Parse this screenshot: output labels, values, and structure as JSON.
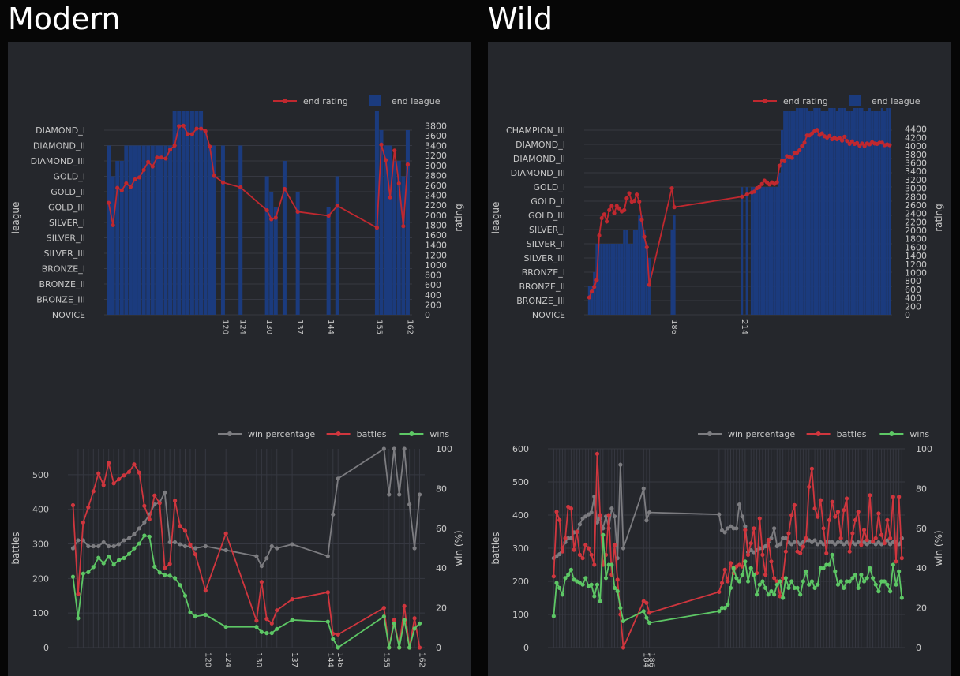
{
  "sections": [
    {
      "title": "Modern",
      "rating_chart": {
        "type": "bar+line",
        "legend": [
          "end rating",
          "end league"
        ],
        "ylabel_left": "league",
        "ylabel_right": "rating",
        "league_ticks": [
          "NOVICE",
          "BRONZE_III",
          "BRONZE_II",
          "BRONZE_I",
          "SILVER_III",
          "SILVER_II",
          "SILVER_I",
          "GOLD_III",
          "GOLD_II",
          "GOLD_I",
          "DIAMOND_III",
          "DIAMOND_II",
          "DIAMOND_I"
        ],
        "rating_ticks": [
          0,
          200,
          400,
          600,
          800,
          1000,
          1200,
          1400,
          1600,
          1800,
          2000,
          2200,
          2400,
          2600,
          2800,
          3000,
          3200,
          3400,
          3600,
          3800
        ],
        "rating_range": [
          0,
          3900
        ],
        "x_range": [
          93,
          163
        ],
        "x_ticks": [
          "120",
          "124",
          "130",
          "137",
          "144",
          "155",
          "162"
        ],
        "x": [
          94,
          95,
          96,
          97,
          98,
          99,
          100,
          101,
          102,
          103,
          104,
          105,
          106,
          107,
          108,
          109,
          110,
          111,
          112,
          113,
          114,
          115,
          116,
          117,
          118,
          120,
          124,
          130,
          131,
          132,
          134,
          137,
          144,
          146,
          155,
          156,
          157,
          158,
          159,
          160,
          161,
          162
        ],
        "league_index": [
          11,
          9,
          10,
          10,
          11,
          11,
          11,
          11,
          11,
          11,
          11,
          11,
          11,
          11,
          11,
          13,
          13,
          13,
          13,
          13,
          13,
          13,
          12,
          11,
          11,
          11,
          11,
          9,
          8,
          7,
          10,
          8,
          7,
          9,
          13,
          12,
          11,
          11,
          10,
          10,
          9,
          12
        ],
        "rating": [
          2250,
          1800,
          2550,
          2500,
          2640,
          2570,
          2720,
          2760,
          2910,
          3070,
          2980,
          3160,
          3160,
          3140,
          3320,
          3400,
          3790,
          3800,
          3630,
          3630,
          3740,
          3740,
          3690,
          3380,
          2790,
          2660,
          2560,
          2100,
          1920,
          1950,
          2530,
          2070,
          1990,
          2190,
          1750,
          3420,
          3110,
          2360,
          3300,
          2640,
          1780,
          3020
        ]
      },
      "battles_chart": {
        "type": "line",
        "legend": [
          "win percentage",
          "battles",
          "wins"
        ],
        "ylabel_left": "battles",
        "ylabel_right": "win (%)",
        "left_ticks": [
          0,
          100,
          200,
          300,
          400,
          500
        ],
        "left_range": [
          0,
          575
        ],
        "right_ticks": [
          0,
          20,
          40,
          60,
          80,
          100
        ],
        "right_range": [
          0,
          100
        ],
        "x_range": [
          93,
          163
        ],
        "x_ticks": [
          "120",
          "124",
          "130",
          "137",
          "144",
          "146",
          "155",
          "162"
        ],
        "x": [
          94,
          95,
          96,
          97,
          98,
          99,
          100,
          101,
          102,
          103,
          104,
          105,
          106,
          107,
          108,
          109,
          110,
          111,
          112,
          113,
          114,
          115,
          116,
          117,
          118,
          120,
          124,
          130,
          131,
          132,
          133,
          134,
          137,
          144,
          145,
          146,
          155,
          156,
          157,
          158,
          159,
          160,
          161,
          162
        ],
        "win_pct": [
          50,
          54,
          54,
          51,
          51,
          51,
          53,
          51,
          51,
          52,
          54,
          55,
          57,
          60,
          63,
          67,
          72,
          73,
          78,
          53,
          53,
          52,
          51,
          51,
          50,
          51,
          49,
          46,
          41,
          45,
          51,
          50,
          52,
          46,
          67,
          85,
          100,
          77,
          100,
          77,
          100,
          72,
          50,
          77
        ],
        "battles": [
          412,
          155,
          362,
          406,
          452,
          504,
          470,
          534,
          475,
          487,
          498,
          508,
          530,
          506,
          410,
          371,
          440,
          418,
          230,
          242,
          425,
          352,
          338,
          298,
          270,
          165,
          330,
          78,
          190,
          83,
          70,
          108,
          140,
          160,
          40,
          38,
          115,
          0,
          80,
          0,
          120,
          0,
          85,
          0
        ],
        "wins": [
          205,
          85,
          214,
          218,
          233,
          260,
          244,
          263,
          240,
          253,
          259,
          271,
          287,
          301,
          324,
          321,
          234,
          217,
          210,
          208,
          201,
          181,
          150,
          102,
          90,
          95,
          60,
          60,
          45,
          42,
          42,
          54,
          80,
          75,
          25,
          0,
          90,
          0,
          70,
          0,
          80,
          0,
          55,
          70
        ]
      }
    },
    {
      "title": "Wild",
      "rating_chart": {
        "type": "bar+line",
        "legend": [
          "end rating",
          "end league"
        ],
        "ylabel_left": "league",
        "ylabel_right": "rating",
        "league_ticks": [
          "NOVICE",
          "BRONZE_III",
          "BRONZE_II",
          "BRONZE_I",
          "SILVER_III",
          "SILVER_II",
          "SILVER_I",
          "GOLD_III",
          "GOLD_II",
          "GOLD_I",
          "DIAMOND_III",
          "DIAMOND_II",
          "DIAMOND_I",
          "CHAMPION_III"
        ],
        "rating_ticks": [
          0,
          200,
          400,
          600,
          800,
          1000,
          1200,
          1400,
          1600,
          1800,
          2000,
          2200,
          2400,
          2600,
          2800,
          3000,
          3200,
          3400,
          3600,
          3800,
          4000,
          4200,
          4400
        ],
        "rating_range": [
          0,
          4600
        ],
        "x_range": [
          151,
          274
        ],
        "x_ticks": [
          "186",
          "214"
        ],
        "x": [
          153,
          154,
          155,
          156,
          157,
          158,
          159,
          160,
          161,
          162,
          163,
          164,
          165,
          166,
          167,
          168,
          169,
          170,
          171,
          172,
          173,
          174,
          175,
          176,
          177,
          186,
          187,
          214,
          216,
          218,
          219,
          220,
          221,
          222,
          223,
          224,
          225,
          226,
          227,
          228,
          229,
          230,
          231,
          232,
          233,
          234,
          235,
          236,
          237,
          238,
          239,
          240,
          241,
          242,
          243,
          244,
          245,
          246,
          247,
          248,
          249,
          250,
          251,
          252,
          253,
          254,
          255,
          256,
          257,
          258,
          259,
          260,
          261,
          262,
          263,
          264,
          265,
          266,
          267,
          268,
          269,
          270,
          271,
          272,
          273
        ],
        "league_index": [
          2,
          2,
          3,
          5,
          5,
          5,
          5,
          5,
          5,
          5,
          5,
          5,
          5,
          5,
          6,
          6,
          5,
          5,
          6,
          6,
          7,
          7,
          6,
          5,
          4,
          6,
          7,
          9,
          9,
          9,
          9,
          9,
          9,
          9,
          9,
          9,
          9,
          9,
          9,
          9,
          10,
          13,
          14,
          14,
          14,
          14,
          14,
          15,
          15,
          15,
          15,
          15,
          14,
          14,
          15,
          15,
          15,
          14,
          14,
          14,
          15,
          15,
          15,
          14,
          15,
          15,
          15,
          14,
          14,
          14,
          15,
          15,
          15,
          15,
          14,
          14,
          15,
          14,
          14,
          14,
          14,
          15,
          14,
          15,
          15
        ],
        "rating": [
          410,
          550,
          660,
          820,
          1880,
          2290,
          2380,
          2210,
          2480,
          2580,
          2410,
          2580,
          2520,
          2450,
          2480,
          2760,
          2880,
          2680,
          2700,
          2850,
          2680,
          2250,
          1850,
          1600,
          710,
          3000,
          2550,
          2800,
          2850,
          2900,
          2920,
          3000,
          3040,
          3100,
          3180,
          3140,
          3090,
          3140,
          3100,
          3140,
          3530,
          3650,
          3640,
          3760,
          3740,
          3720,
          3840,
          3840,
          3900,
          4000,
          4080,
          4250,
          4250,
          4300,
          4350,
          4380,
          4260,
          4300,
          4230,
          4200,
          4240,
          4160,
          4200,
          4160,
          4190,
          4130,
          4220,
          4120,
          4050,
          4110,
          4050,
          4070,
          4010,
          4060,
          4000,
          4060,
          4040,
          4090,
          4060,
          4050,
          4080,
          4080,
          4020,
          4040,
          4020
        ]
      },
      "battles_chart": {
        "type": "line",
        "legend": [
          "win percentage",
          "battles",
          "wins"
        ],
        "ylabel_left": "battles",
        "ylabel_right": "win (%)",
        "left_ticks": [
          0,
          100,
          200,
          300,
          400,
          500,
          600
        ],
        "left_range": [
          0,
          600
        ],
        "right_ticks": [
          0,
          20,
          40,
          60,
          80,
          100
        ],
        "right_range": [
          0,
          100
        ],
        "x_range": [
          151,
          274
        ],
        "x_ticks": [
          "184",
          "186"
        ],
        "x": [
          153,
          154,
          155,
          156,
          157,
          158,
          159,
          160,
          161,
          162,
          163,
          164,
          165,
          166,
          167,
          168,
          169,
          170,
          171,
          172,
          173,
          174,
          175,
          176,
          177,
          184,
          185,
          186,
          210,
          211,
          212,
          213,
          214,
          215,
          216,
          217,
          218,
          219,
          220,
          221,
          222,
          223,
          224,
          225,
          226,
          227,
          228,
          229,
          230,
          231,
          232,
          233,
          234,
          235,
          236,
          237,
          238,
          239,
          240,
          241,
          242,
          243,
          244,
          245,
          246,
          247,
          248,
          249,
          250,
          251,
          252,
          253,
          254,
          255,
          256,
          257,
          258,
          259,
          260,
          261,
          262,
          263,
          264,
          265,
          266,
          267,
          268,
          269,
          270,
          271,
          272,
          273
        ],
        "win_pct": [
          45,
          46,
          47,
          50,
          53,
          55,
          55,
          58,
          58,
          62,
          65,
          66,
          67,
          68,
          76,
          63,
          65,
          60,
          66,
          60,
          70,
          66,
          45,
          92,
          50,
          80,
          64,
          68,
          67,
          59,
          58,
          60,
          61,
          60,
          60,
          72,
          66,
          61,
          48,
          49,
          48,
          49,
          50,
          50,
          51,
          53,
          55,
          60,
          51,
          52,
          55,
          55,
          53,
          52,
          53,
          53,
          52,
          53,
          54,
          54,
          53,
          54,
          52,
          53,
          52,
          53,
          53,
          53,
          52,
          53,
          53,
          52,
          53,
          52,
          53,
          52,
          53,
          53,
          53,
          52,
          53,
          53,
          52,
          53,
          52,
          53,
          54,
          52,
          53,
          53,
          52,
          55
        ],
        "battles": [
          215,
          410,
          385,
          290,
          330,
          425,
          420,
          295,
          350,
          280,
          270,
          310,
          300,
          280,
          250,
          585,
          400,
          250,
          280,
          400,
          220,
          310,
          205,
          100,
          0,
          140,
          135,
          105,
          168,
          195,
          235,
          200,
          255,
          225,
          245,
          250,
          245,
          355,
          280,
          315,
          360,
          225,
          390,
          280,
          220,
          325,
          260,
          210,
          200,
          155,
          210,
          290,
          345,
          400,
          430,
          290,
          285,
          305,
          330,
          485,
          540,
          420,
          395,
          445,
          360,
          285,
          385,
          440,
          395,
          410,
          330,
          415,
          450,
          290,
          345,
          385,
          410,
          310,
          355,
          325,
          460,
          320,
          330,
          405,
          340,
          315,
          385,
          330,
          455,
          260,
          455,
          270
        ],
        "wins": [
          95,
          195,
          180,
          160,
          210,
          220,
          235,
          205,
          200,
          195,
          190,
          210,
          185,
          190,
          155,
          190,
          140,
          340,
          210,
          250,
          250,
          180,
          170,
          120,
          80,
          110,
          90,
          75,
          110,
          120,
          120,
          130,
          180,
          240,
          210,
          200,
          220,
          260,
          200,
          240,
          220,
          160,
          190,
          200,
          180,
          160,
          170,
          160,
          190,
          200,
          150,
          210,
          180,
          200,
          180,
          180,
          160,
          200,
          230,
          190,
          200,
          180,
          190,
          240,
          240,
          250,
          250,
          280,
          230,
          190,
          200,
          180,
          200,
          200,
          210,
          220,
          180,
          220,
          200,
          210,
          240,
          210,
          190,
          170,
          200,
          200,
          190,
          170,
          250,
          190,
          230,
          150
        ]
      }
    }
  ],
  "colors": {
    "panel_bg": "#25272c",
    "page_bg": "#060606",
    "bar": "#1b3b7e",
    "rating_line": "#c0282f",
    "battles_line": "#d0363e",
    "wins_line": "#5dc765",
    "winpct_line": "#7c7c80",
    "grid": "#363841",
    "text": "#c8c8c8"
  }
}
